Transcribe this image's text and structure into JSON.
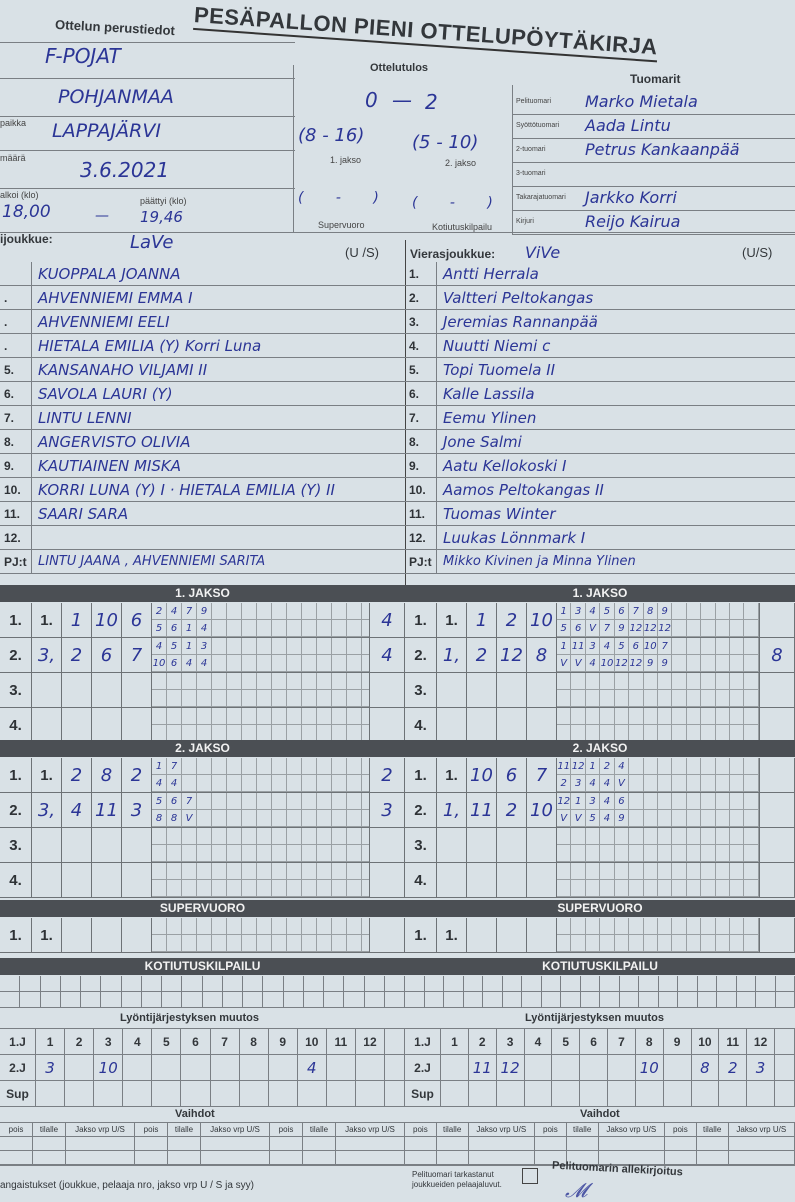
{
  "title": "PESÄPALLON PIENI OTTELUPÖYTÄKIRJA",
  "basic_info": {
    "heading": "Ottelun perustiedot",
    "series": "F-POJAT",
    "region": "POHJANMAA",
    "place_label": "paikka",
    "place": "LAPPAJÄRVI",
    "date_label": "määrä",
    "date": "3.6.2021",
    "start_label": "alkoi (klo)",
    "start": "18,00",
    "end_label": "päättyi (klo)",
    "end": "19,46"
  },
  "result": {
    "heading": "Ottelutulos",
    "home": "0",
    "away": "2",
    "dash": "—",
    "period1": "(8 - 16)",
    "period2": "(5 - 10)",
    "period1_label": "1. jakso",
    "period2_label": "2. jakso",
    "super": "( - )",
    "home_run": "( - )",
    "super_label": "Supervuoro",
    "home_run_label": "Kotiutuskilpailu"
  },
  "umpires": {
    "heading": "Tuomarit",
    "rows": [
      {
        "label": "Pelituomari",
        "name": "Marko Mietala"
      },
      {
        "label": "Syöttötuomari",
        "name": "Aada Lintu"
      },
      {
        "label": "2-tuomari",
        "name": "Petrus Kankaanpää"
      },
      {
        "label": "3-tuomari",
        "name": ""
      },
      {
        "label": "Takarajatuomari",
        "name": "Jarkko Korri"
      },
      {
        "label": "Kirjuri",
        "name": "Reijo Kairua"
      }
    ]
  },
  "home": {
    "label": "ijoukkue:",
    "name": "LaVe",
    "us": "(U /S)",
    "players": [
      {
        "no": "",
        "name": "KUOPPALA JOANNA"
      },
      {
        "no": ".",
        "name": "AHVENNIEMI EMMA          I"
      },
      {
        "no": ".",
        "name": "AHVENNIEMI EELI"
      },
      {
        "no": ".",
        "name": "HIETALA EMILIA (Y)   Korri Luna"
      },
      {
        "no": "5.",
        "name": "KANSANAHO VILJAMI        II"
      },
      {
        "no": "6.",
        "name": "SAVOLA LAURI (Y)"
      },
      {
        "no": "7.",
        "name": "LINTU LENNI"
      },
      {
        "no": "8.",
        "name": "ANGERVISTO OLIVIA"
      },
      {
        "no": "9.",
        "name": "KAUTIAINEN MISKA"
      },
      {
        "no": "10.",
        "name": "KORRI LUNA (Y) I · HIETALA EMILIA (Y) II"
      },
      {
        "no": "11.",
        "name": "SAARI SARA"
      },
      {
        "no": "12.",
        "name": ""
      }
    ],
    "pj_label": "PJ:t",
    "pj": "LINTU JAANA , AHVENNIEMI SARITA"
  },
  "away": {
    "label": "Vierasjoukkue:",
    "name": "ViVe",
    "us": "(U/S)",
    "players": [
      {
        "no": "1.",
        "name": "Antti Herrala"
      },
      {
        "no": "2.",
        "name": "Valtteri Peltokangas"
      },
      {
        "no": "3.",
        "name": "Jeremias Rannanpää"
      },
      {
        "no": "4.",
        "name": "Nuutti Niemi   c"
      },
      {
        "no": "5.",
        "name": "Topi Tuomela                 II"
      },
      {
        "no": "6.",
        "name": "Kalle Lassila"
      },
      {
        "no": "7.",
        "name": "Eemu Ylinen"
      },
      {
        "no": "8.",
        "name": "Jone Salmi"
      },
      {
        "no": "9.",
        "name": "Aatu Kellokoski        I"
      },
      {
        "no": "10.",
        "name": "Aamos Peltokangas          II"
      },
      {
        "no": "11.",
        "name": "Tuomas Winter"
      },
      {
        "no": "12.",
        "name": "Luukas Lönnmark          I"
      }
    ],
    "pj_label": "PJ:t",
    "pj": "Mikko Kivinen ja Minna Ylinen"
  },
  "periods": [
    {
      "title": "1. JAKSO",
      "home": [
        {
          "no": "1.",
          "cells": [
            "1.",
            "1",
            "10",
            "6"
          ],
          "top": [
            "2",
            "4",
            "7",
            "9"
          ],
          "bottom": [
            "5",
            "6",
            "1",
            "4"
          ],
          "total": "4"
        },
        {
          "no": "2.",
          "cells": [
            "3,",
            "2",
            "6",
            "7"
          ],
          "top": [
            "4",
            "5",
            "1",
            "3"
          ],
          "bottom": [
            "10",
            "6",
            "4",
            "4"
          ],
          "total": "4"
        },
        {
          "no": "3.",
          "cells": [
            "",
            "",
            "",
            ""
          ],
          "top": [],
          "bottom": [],
          "total": ""
        },
        {
          "no": "4.",
          "cells": [
            "",
            "",
            "",
            ""
          ],
          "top": [],
          "bottom": [],
          "total": ""
        }
      ],
      "away": [
        {
          "no": "1.",
          "cells": [
            "1.",
            "1",
            "2",
            "10"
          ],
          "top": [
            "1",
            "3",
            "4",
            "5",
            "6",
            "7",
            "8",
            "9"
          ],
          "bottom": [
            "5",
            "6",
            "V",
            "7",
            "9",
            "12",
            "12",
            "12"
          ],
          "total": ""
        },
        {
          "no": "2.",
          "cells": [
            "1,",
            "2",
            "12",
            "8"
          ],
          "top": [
            "1",
            "11",
            "3",
            "4",
            "5",
            "6",
            "10",
            "7"
          ],
          "bottom": [
            "V",
            "V",
            "4",
            "10",
            "12",
            "12",
            "9",
            "9"
          ],
          "total": "8"
        },
        {
          "no": "3.",
          "cells": [
            "",
            "",
            "",
            ""
          ],
          "top": [],
          "bottom": [],
          "total": ""
        },
        {
          "no": "4.",
          "cells": [
            "",
            "",
            "",
            ""
          ],
          "top": [],
          "bottom": [],
          "total": ""
        }
      ]
    },
    {
      "title": "2. JAKSO",
      "home": [
        {
          "no": "1.",
          "cells": [
            "1.",
            "2",
            "8",
            "2"
          ],
          "top": [
            "1",
            "7"
          ],
          "bottom": [
            "4",
            "4"
          ],
          "total": "2"
        },
        {
          "no": "2.",
          "cells": [
            "3,",
            "4",
            "11",
            "3"
          ],
          "top": [
            "5",
            "6",
            "7"
          ],
          "bottom": [
            "8",
            "8",
            "V"
          ],
          "total": "3"
        },
        {
          "no": "3.",
          "cells": [
            "",
            "",
            "",
            ""
          ],
          "top": [],
          "bottom": [],
          "total": ""
        },
        {
          "no": "4.",
          "cells": [
            "",
            "",
            "",
            ""
          ],
          "top": [],
          "bottom": [],
          "total": ""
        }
      ],
      "away": [
        {
          "no": "1.",
          "cells": [
            "1.",
            "10",
            "6",
            "7"
          ],
          "top": [
            "11",
            "12",
            "1",
            "2",
            "4"
          ],
          "bottom": [
            "2",
            "3",
            "4",
            "4",
            "V"
          ],
          "total": ""
        },
        {
          "no": "2.",
          "cells": [
            "1,",
            "11",
            "2",
            "10"
          ],
          "top": [
            "12",
            "1",
            "3",
            "4",
            "6"
          ],
          "bottom": [
            "V",
            "V",
            "5",
            "4",
            "9"
          ],
          "total": ""
        },
        {
          "no": "3.",
          "cells": [
            "",
            "",
            "",
            ""
          ],
          "top": [],
          "bottom": [],
          "total": ""
        },
        {
          "no": "4.",
          "cells": [
            "",
            "",
            "",
            ""
          ],
          "top": [],
          "bottom": [],
          "total": ""
        }
      ]
    }
  ],
  "supervuoro": {
    "title": "SUPERVUORO",
    "home": {
      "no": "1.",
      "cells": [
        "1.",
        "",
        "",
        ""
      ],
      "top": [],
      "bottom": [],
      "total": ""
    },
    "away": {
      "no": "1.",
      "cells": [
        "1.",
        "",
        "",
        ""
      ],
      "top": [],
      "bottom": [],
      "total": ""
    }
  },
  "kotiutus": {
    "title": "KOTIUTUSKILPAILU"
  },
  "batting_order_change": {
    "title": "Lyöntijärjestyksen muutos",
    "row_labels": [
      "1.J",
      "2.J",
      "Sup"
    ],
    "columns": [
      "1",
      "2",
      "3",
      "4",
      "5",
      "6",
      "7",
      "8",
      "9",
      "10",
      "11",
      "12"
    ],
    "home_2j": [
      "3",
      "",
      "10",
      "",
      "",
      "",
      "",
      "",
      "",
      "4",
      "",
      ""
    ],
    "away_2j": [
      "",
      "11",
      "12",
      "",
      "",
      "",
      "",
      "10",
      "",
      "8",
      "2",
      "3"
    ]
  },
  "substitutions": {
    "title": "Vaihdot",
    "headers": [
      "pois",
      "tilalle",
      "Jakso vrp U/S",
      "pois",
      "tilalle",
      "Jakso vrp U/S",
      "pois",
      "tilalle",
      "Jakso vrp U/S"
    ]
  },
  "footer": {
    "penalties": "angaistukset (joukkue, pelaaja nro, jakso vrp U / S ja syy)",
    "checked": "Pelituomari tarkastanut joukkueiden pelaajaluvut.",
    "signature_label": "Pelituomarin allekirjoitus",
    "signature": "Mietala"
  },
  "colors": {
    "ink": "#2b3596",
    "paper": "#d9e1e6",
    "band": "#4b4f54"
  }
}
